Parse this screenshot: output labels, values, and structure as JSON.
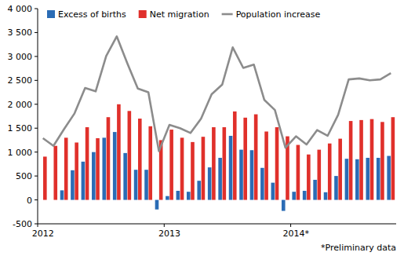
{
  "chart_data": {
    "type": "bar",
    "annotation": "*Preliminary data",
    "categories": [
      "2012",
      null,
      null,
      null,
      null,
      null,
      null,
      null,
      null,
      null,
      null,
      null,
      "2013",
      null,
      null,
      null,
      null,
      null,
      null,
      null,
      null,
      null,
      null,
      null,
      "2014*",
      null,
      null,
      null,
      null,
      null,
      null,
      null,
      null,
      null
    ],
    "series": [
      {
        "name": "Excess of births",
        "type": "bar",
        "color": "#2b6cb5",
        "values": [
          0,
          0,
          200,
          620,
          800,
          1000,
          1300,
          1420,
          980,
          630,
          630,
          -200,
          80,
          190,
          170,
          400,
          680,
          880,
          1340,
          1050,
          1040,
          670,
          360,
          -230,
          170,
          190,
          420,
          160,
          500,
          860,
          850,
          880,
          880,
          920
        ]
      },
      {
        "name": "Net migration",
        "type": "bar",
        "color": "#e0302b",
        "values": [
          905,
          1130,
          1300,
          1200,
          1520,
          1290,
          1730,
          2000,
          1860,
          1700,
          1540,
          1250,
          1470,
          1300,
          1210,
          1320,
          1520,
          1520,
          1850,
          1720,
          1790,
          1430,
          1520,
          1330,
          1150,
          950,
          1050,
          1180,
          1280,
          1650,
          1670,
          1690,
          1630,
          1730
        ]
      },
      {
        "name": "Population increase",
        "type": "line",
        "color": "#8c8c8c",
        "values": [
          1290,
          1130,
          1480,
          1810,
          2340,
          2270,
          3010,
          3420,
          2860,
          2330,
          2250,
          1020,
          1570,
          1500,
          1400,
          1700,
          2210,
          2410,
          3190,
          2760,
          2830,
          2090,
          1880,
          1090,
          1330,
          1160,
          1460,
          1340,
          1780,
          2520,
          2540,
          2500,
          2520,
          2650
        ]
      }
    ],
    "ylim": [
      -500,
      4000
    ],
    "yticks": [
      -500,
      0,
      500,
      {
        "value": 1000,
        "label": "1 000"
      },
      {
        "value": 1500,
        "label": "1 500"
      },
      {
        "value": 2000,
        "label": "2 000"
      },
      {
        "value": 2500,
        "label": "2 500"
      },
      {
        "value": 3000,
        "label": "3 000"
      },
      {
        "value": 3500,
        "label": "3 500"
      },
      {
        "value": 4000,
        "label": "4 000"
      }
    ],
    "grid": false,
    "legend": "top-left"
  }
}
